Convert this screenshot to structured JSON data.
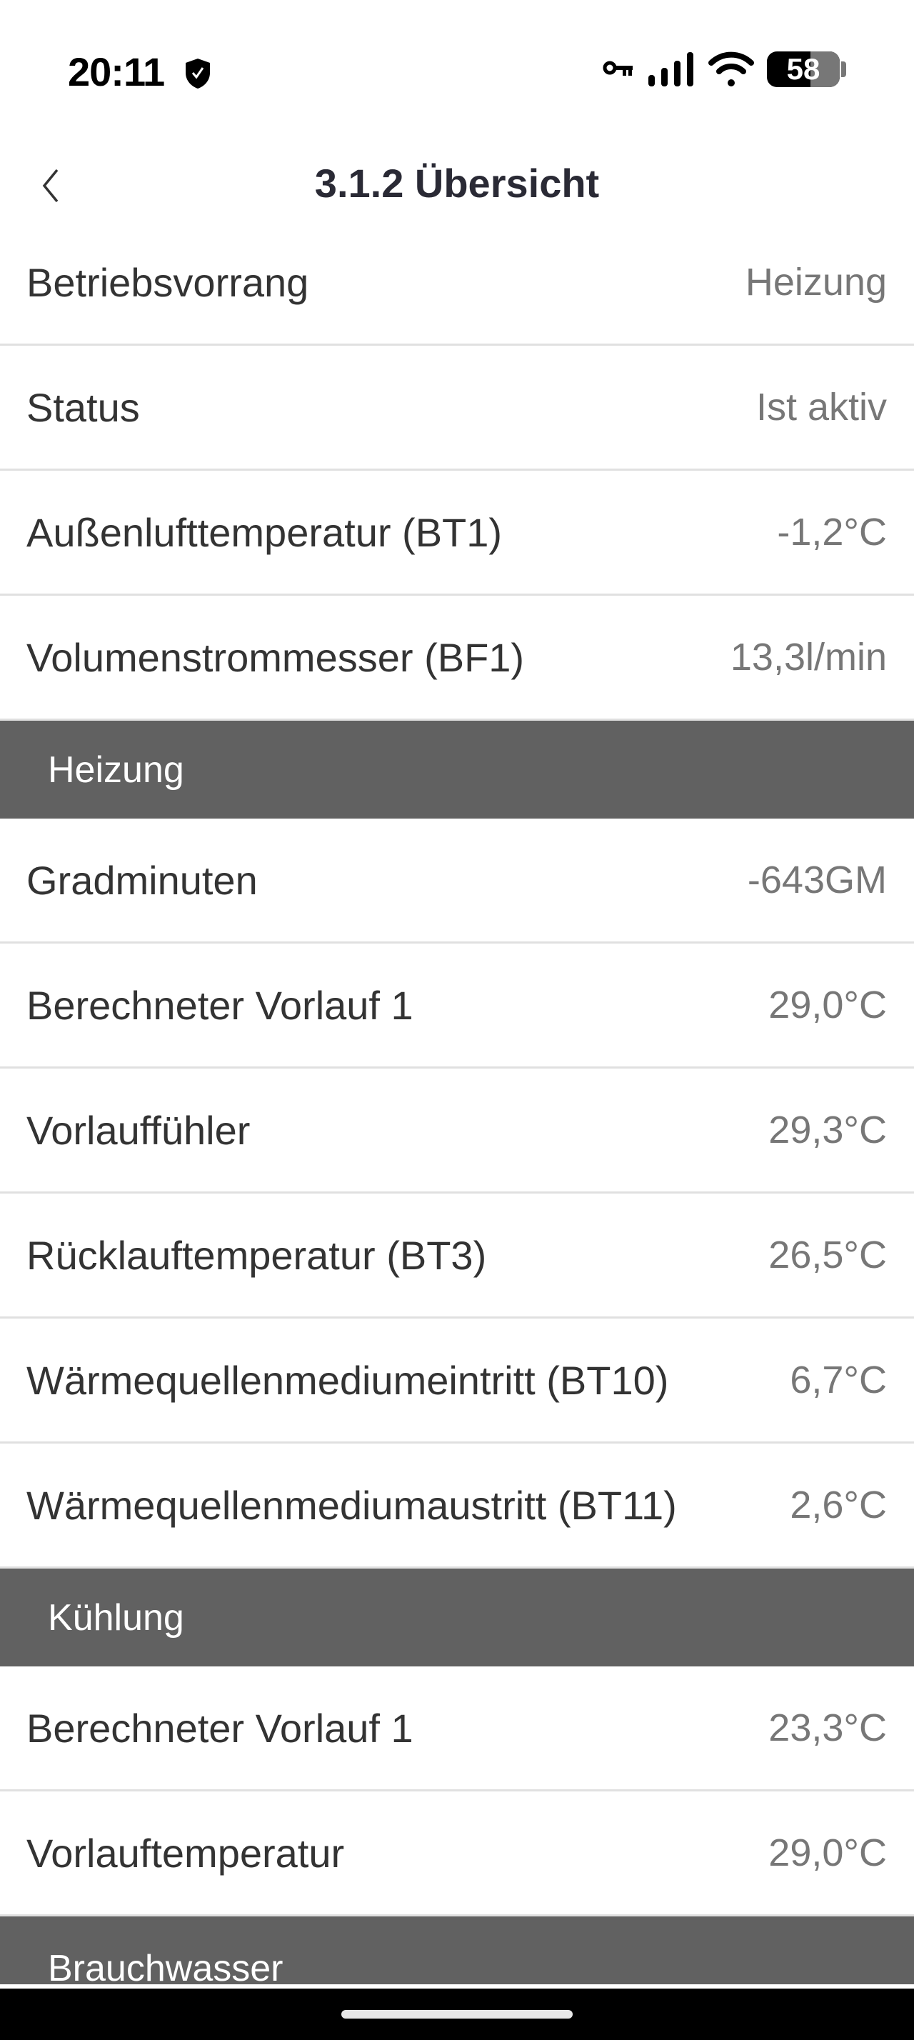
{
  "status_bar": {
    "time": "20:11",
    "battery": "58",
    "icons": [
      "shield-check-icon",
      "vpn-key-icon",
      "signal-icon",
      "wifi-icon",
      "battery-icon"
    ]
  },
  "header": {
    "title": "3.1.2 Übersicht",
    "back_icon": "chevron-left-icon"
  },
  "general": [
    {
      "label": "Betriebsvorrang",
      "value": "Heizung"
    },
    {
      "label": "Status",
      "value": "Ist aktiv"
    },
    {
      "label": "Außenlufttemperatur (BT1)",
      "value": "-1,2°C"
    },
    {
      "label": "Volumenstrommesser (BF1)",
      "value": "13,3l/min"
    }
  ],
  "heizung": {
    "title": "Heizung",
    "rows": [
      {
        "label": "Gradminuten",
        "value": "-643GM"
      },
      {
        "label": "Berechneter Vorlauf 1",
        "value": "29,0°C"
      },
      {
        "label": "Vorlauffühler",
        "value": "29,3°C"
      },
      {
        "label": "Rücklauftemperatur (BT3)",
        "value": "26,5°C"
      },
      {
        "label": "Wärmequellenmediumeintritt (BT10)",
        "value": "6,7°C"
      },
      {
        "label": "Wärmequellenmediumaustritt (BT11)",
        "value": "2,6°C"
      }
    ]
  },
  "kuehlung": {
    "title": "Kühlung",
    "rows": [
      {
        "label": "Berechneter Vorlauf 1",
        "value": "23,3°C"
      },
      {
        "label": "Vorlauftemperatur",
        "value": "29,0°C"
      }
    ]
  },
  "brauchwasser": {
    "title": "Brauchwasser"
  },
  "colors": {
    "section_bg": "#616161",
    "label": "#333333",
    "value": "#777777",
    "title": "#2a2a35"
  }
}
